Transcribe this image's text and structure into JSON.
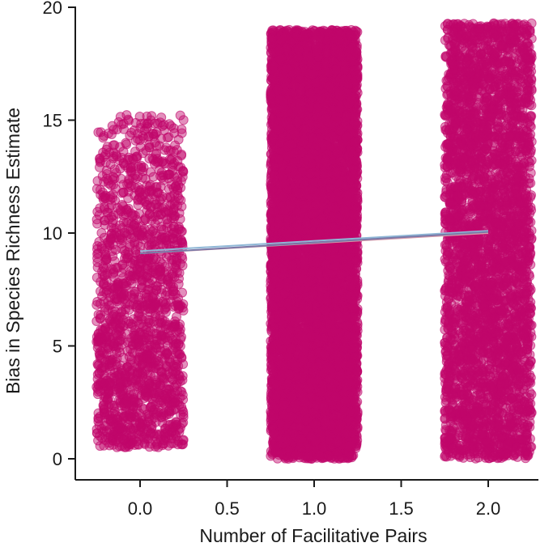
{
  "chart_data": {
    "type": "scatter",
    "title": "",
    "xlabel": "Number of Facilitative Pairs",
    "ylabel": "Bias in Species Richness Estimate",
    "xlim": [
      -0.3,
      2.3
    ],
    "ylim": [
      0,
      20
    ],
    "x_ticks": [
      0.0,
      0.5,
      1.0,
      1.5,
      2.0
    ],
    "x_tick_labels": [
      "0.0",
      "0.5",
      "1.0",
      "1.5",
      "2.0"
    ],
    "y_ticks": [
      0,
      5,
      10,
      15,
      20
    ],
    "y_tick_labels": [
      "0",
      "5",
      "10",
      "15",
      "20"
    ],
    "grid": false,
    "point_color": "#c0076a",
    "jitter_width": 0.25,
    "groups": [
      {
        "x": 0,
        "y_range": [
          0.5,
          15.3
        ],
        "approx_points": 1700
      },
      {
        "x": 1,
        "y_range": [
          0.0,
          19.0
        ],
        "approx_points": 9000
      },
      {
        "x": 2,
        "y_range": [
          0.0,
          19.3
        ],
        "approx_points": 3800
      }
    ],
    "fit_lines": [
      {
        "color": "#8fb7d6",
        "x": [
          0,
          2
        ],
        "y": [
          9.2,
          10.1
        ]
      },
      {
        "color": "#d89aa8",
        "x": [
          0,
          2
        ],
        "y": [
          9.1,
          10.0
        ]
      },
      {
        "color": "#7a7aa8",
        "x": [
          0,
          2
        ],
        "y": [
          9.1,
          10.05
        ]
      }
    ]
  }
}
